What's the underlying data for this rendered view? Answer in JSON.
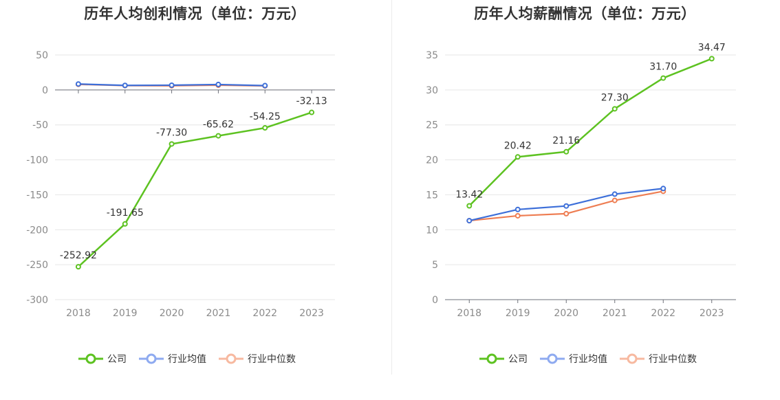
{
  "chart_data": [
    {
      "type": "line",
      "title": "历年人均创利情况（单位：万元）",
      "categories": [
        "2018",
        "2019",
        "2020",
        "2021",
        "2022",
        "2023"
      ],
      "ylim": [
        -300,
        50
      ],
      "yticks": [
        50,
        0,
        -50,
        -100,
        -150,
        -200,
        -250,
        -300
      ],
      "ytick_labels": [
        "50",
        "0",
        "-50",
        "-100",
        "-150",
        "-200",
        "-250",
        "-300"
      ],
      "grid": true,
      "legend_position": "bottom",
      "series": [
        {
          "name": "公司",
          "color": "#5dc221",
          "values": [
            -252.92,
            -191.65,
            -77.3,
            -65.62,
            -54.25,
            -32.13
          ],
          "labels": [
            "-252.92",
            "-191.65",
            "-77.30",
            "-65.62",
            "-54.25",
            "-32.13"
          ]
        },
        {
          "name": "行业均值",
          "color": "#3d6fd9",
          "values": [
            8.5,
            6.5,
            6.8,
            7.8,
            6.2,
            null
          ]
        },
        {
          "name": "行业中位数",
          "color": "#ee7d52",
          "values": [
            8.0,
            6.2,
            6.0,
            6.8,
            5.8,
            null
          ]
        }
      ]
    },
    {
      "type": "line",
      "title": "历年人均薪酬情况（单位：万元）",
      "categories": [
        "2018",
        "2019",
        "2020",
        "2021",
        "2022",
        "2023"
      ],
      "ylim": [
        0,
        35
      ],
      "yticks": [
        35,
        30,
        25,
        20,
        15,
        10,
        5,
        0
      ],
      "ytick_labels": [
        "35",
        "30",
        "25",
        "20",
        "15",
        "10",
        "5",
        "0"
      ],
      "grid": true,
      "legend_position": "bottom",
      "series": [
        {
          "name": "公司",
          "color": "#5dc221",
          "values": [
            13.42,
            20.42,
            21.16,
            27.3,
            31.7,
            34.47
          ],
          "labels": [
            "13.42",
            "20.42",
            "21.16",
            "27.30",
            "31.70",
            "34.47"
          ]
        },
        {
          "name": "行业均值",
          "color": "#3d6fd9",
          "values": [
            11.3,
            12.9,
            13.4,
            15.1,
            15.9,
            null
          ]
        },
        {
          "name": "行业中位数",
          "color": "#ee7d52",
          "values": [
            11.3,
            12.0,
            12.3,
            14.2,
            15.5,
            null
          ]
        }
      ]
    }
  ],
  "legend": [
    {
      "name": "公司",
      "color": "#5dc221",
      "icon": "circle-line-icon"
    },
    {
      "name": "行业均值",
      "color": "#8eaaf0",
      "icon": "circle-line-icon"
    },
    {
      "name": "行业中位数",
      "color": "#f7b9a0",
      "icon": "circle-line-icon"
    }
  ]
}
